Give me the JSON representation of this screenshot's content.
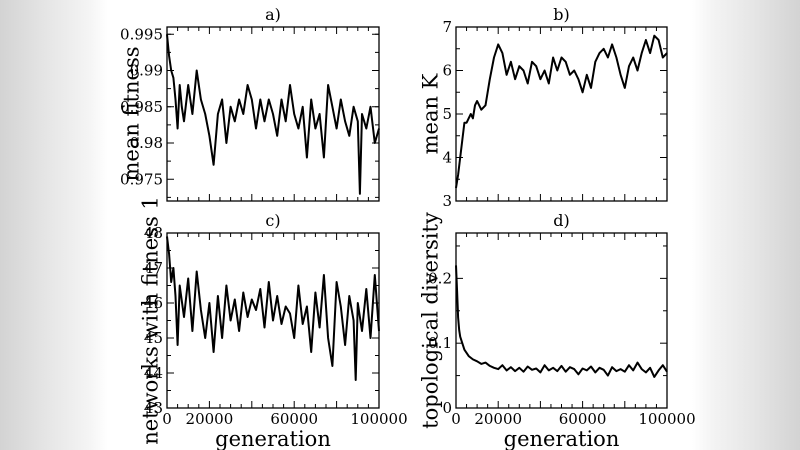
{
  "chart_data": [
    {
      "type": "line",
      "title": "a)",
      "xlabel": "",
      "ylabel": "mean fitness",
      "xlim": [
        0,
        100000
      ],
      "ylim": [
        0.972,
        0.996
      ],
      "xticks": [
        0,
        20000,
        40000,
        60000,
        80000,
        100000
      ],
      "xticklabels": [],
      "yticks": [
        0.975,
        0.98,
        0.985,
        0.99,
        0.995
      ],
      "yticklabels": [
        "0.975",
        "0.98",
        "0.985",
        "0.99",
        "0.995"
      ],
      "series": [
        {
          "x": [
            0,
            1000,
            2000,
            3000,
            4000,
            5000,
            6000,
            7000,
            8000,
            10000,
            12000,
            14000,
            16000,
            18000,
            20000,
            22000,
            24000,
            26000,
            28000,
            30000,
            32000,
            34000,
            36000,
            38000,
            40000,
            42000,
            44000,
            46000,
            48000,
            50000,
            52000,
            54000,
            56000,
            58000,
            60000,
            62000,
            64000,
            66000,
            68000,
            70000,
            72000,
            74000,
            76000,
            78000,
            80000,
            82000,
            84000,
            86000,
            88000,
            90000,
            91000,
            92000,
            94000,
            96000,
            98000,
            100000
          ],
          "y": [
            0.995,
            0.992,
            0.99,
            0.989,
            0.986,
            0.982,
            0.988,
            0.985,
            0.983,
            0.988,
            0.984,
            0.99,
            0.986,
            0.984,
            0.981,
            0.977,
            0.984,
            0.986,
            0.98,
            0.985,
            0.983,
            0.986,
            0.984,
            0.988,
            0.986,
            0.982,
            0.986,
            0.983,
            0.986,
            0.984,
            0.981,
            0.986,
            0.983,
            0.988,
            0.984,
            0.982,
            0.985,
            0.978,
            0.986,
            0.982,
            0.984,
            0.978,
            0.988,
            0.985,
            0.982,
            0.986,
            0.983,
            0.981,
            0.985,
            0.983,
            0.973,
            0.984,
            0.982,
            0.985,
            0.98,
            0.982
          ]
        }
      ]
    },
    {
      "type": "line",
      "title": "b)",
      "xlabel": "",
      "ylabel": "mean K",
      "xlim": [
        0,
        100000
      ],
      "ylim": [
        3,
        7
      ],
      "xticks": [
        0,
        20000,
        40000,
        60000,
        80000,
        100000
      ],
      "xticklabels": [],
      "yticks": [
        3,
        4,
        5,
        6,
        7
      ],
      "yticklabels": [
        "3",
        "4",
        "5",
        "6",
        "7"
      ],
      "series": [
        {
          "x": [
            0,
            1000,
            2000,
            3000,
            4000,
            5000,
            6000,
            7000,
            8000,
            9000,
            10000,
            12000,
            14000,
            16000,
            18000,
            20000,
            22000,
            24000,
            26000,
            28000,
            30000,
            32000,
            34000,
            36000,
            38000,
            40000,
            42000,
            44000,
            46000,
            48000,
            50000,
            52000,
            54000,
            56000,
            58000,
            60000,
            62000,
            64000,
            66000,
            68000,
            70000,
            72000,
            74000,
            76000,
            78000,
            80000,
            82000,
            84000,
            86000,
            88000,
            90000,
            92000,
            94000,
            96000,
            98000,
            100000
          ],
          "y": [
            3.3,
            3.6,
            4.0,
            4.4,
            4.8,
            4.8,
            4.9,
            5.0,
            4.9,
            5.2,
            5.3,
            5.1,
            5.2,
            5.8,
            6.3,
            6.6,
            6.4,
            5.9,
            6.2,
            5.8,
            6.1,
            6.0,
            5.7,
            6.2,
            6.1,
            5.8,
            6.0,
            5.7,
            6.3,
            6.0,
            6.3,
            6.2,
            5.9,
            6.0,
            5.8,
            5.5,
            5.9,
            5.6,
            6.2,
            6.4,
            6.5,
            6.3,
            6.6,
            6.3,
            5.9,
            5.6,
            6.1,
            6.3,
            6.0,
            6.4,
            6.7,
            6.4,
            6.8,
            6.7,
            6.3,
            6.4
          ]
        }
      ]
    },
    {
      "type": "line",
      "title": "c)",
      "xlabel": "generation",
      "ylabel": "networks with fitness 1",
      "xlim": [
        0,
        100000
      ],
      "ylim": [
        43,
        48
      ],
      "xticks": [
        0,
        20000,
        40000,
        60000,
        80000,
        100000
      ],
      "xticklabels": [
        "0",
        "20000",
        "",
        "60000",
        "",
        "100000"
      ],
      "yticks": [
        43,
        44,
        45,
        46,
        47,
        48
      ],
      "yticklabels": [
        "43",
        "44",
        "45",
        "46",
        "47",
        "48"
      ],
      "series": [
        {
          "x": [
            0,
            1000,
            2000,
            3000,
            4000,
            5000,
            6000,
            8000,
            10000,
            12000,
            14000,
            16000,
            18000,
            20000,
            22000,
            24000,
            26000,
            28000,
            30000,
            32000,
            34000,
            36000,
            38000,
            40000,
            42000,
            44000,
            46000,
            48000,
            50000,
            52000,
            54000,
            56000,
            58000,
            60000,
            62000,
            64000,
            66000,
            68000,
            70000,
            72000,
            74000,
            76000,
            78000,
            80000,
            82000,
            84000,
            86000,
            88000,
            89000,
            90000,
            92000,
            94000,
            96000,
            98000,
            100000
          ],
          "y": [
            47.9,
            47.4,
            46.6,
            47.0,
            46.2,
            44.8,
            46.5,
            45.6,
            46.7,
            45.2,
            46.9,
            45.8,
            45.0,
            46.0,
            44.6,
            46.2,
            45.0,
            46.5,
            45.5,
            46.1,
            45.2,
            46.3,
            45.6,
            46.1,
            45.8,
            46.4,
            45.3,
            46.6,
            45.5,
            46.2,
            45.4,
            45.9,
            45.7,
            45.0,
            46.5,
            45.4,
            45.9,
            44.6,
            46.3,
            45.3,
            46.8,
            45.0,
            44.2,
            46.6,
            45.9,
            44.8,
            46.2,
            45.5,
            43.8,
            46.0,
            45.2,
            46.4,
            45.0,
            46.8,
            45.2
          ]
        }
      ]
    },
    {
      "type": "line",
      "title": "d)",
      "xlabel": "generation",
      "ylabel": "topological diversity",
      "xlim": [
        0,
        100000
      ],
      "ylim": [
        0,
        0.27
      ],
      "xticks": [
        0,
        20000,
        40000,
        60000,
        80000,
        100000
      ],
      "xticklabels": [
        "0",
        "20000",
        "",
        "60000",
        "",
        "100000"
      ],
      "yticks": [
        0,
        0.1,
        0.2
      ],
      "yticklabels": [
        "0",
        "0.1",
        "0.2"
      ],
      "series": [
        {
          "x": [
            0,
            500,
            1000,
            1500,
            2000,
            3000,
            4000,
            5000,
            6000,
            8000,
            10000,
            12000,
            14000,
            16000,
            18000,
            20000,
            22000,
            24000,
            26000,
            28000,
            30000,
            32000,
            34000,
            36000,
            38000,
            40000,
            42000,
            44000,
            46000,
            48000,
            50000,
            52000,
            54000,
            56000,
            58000,
            60000,
            62000,
            64000,
            66000,
            68000,
            70000,
            72000,
            74000,
            76000,
            78000,
            80000,
            82000,
            84000,
            86000,
            88000,
            90000,
            92000,
            94000,
            96000,
            98000,
            100000
          ],
          "y": [
            0.22,
            0.18,
            0.14,
            0.12,
            0.11,
            0.1,
            0.09,
            0.085,
            0.08,
            0.075,
            0.072,
            0.068,
            0.07,
            0.065,
            0.062,
            0.06,
            0.066,
            0.058,
            0.063,
            0.057,
            0.062,
            0.056,
            0.064,
            0.059,
            0.061,
            0.055,
            0.066,
            0.058,
            0.062,
            0.057,
            0.065,
            0.056,
            0.063,
            0.06,
            0.052,
            0.061,
            0.058,
            0.064,
            0.055,
            0.062,
            0.059,
            0.05,
            0.063,
            0.057,
            0.06,
            0.056,
            0.066,
            0.058,
            0.07,
            0.06,
            0.055,
            0.062,
            0.048,
            0.058,
            0.066,
            0.056
          ]
        }
      ]
    }
  ]
}
